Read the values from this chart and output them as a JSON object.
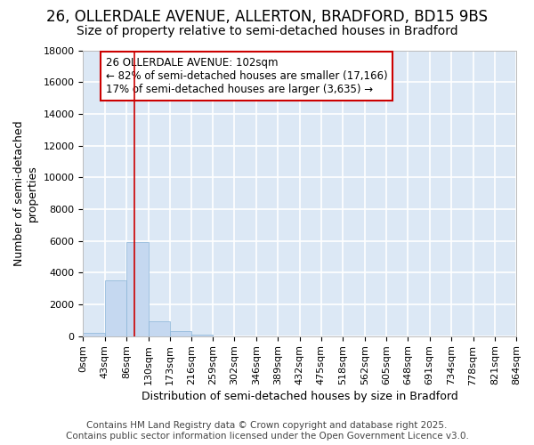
{
  "title": "26, OLLERDALE AVENUE, ALLERTON, BRADFORD, BD15 9BS",
  "subtitle": "Size of property relative to semi-detached houses in Bradford",
  "xlabel": "Distribution of semi-detached houses by size in Bradford",
  "ylabel": "Number of semi-detached\nproperties",
  "bar_color": "#c5d8f0",
  "bar_edge_color": "#8ab4d8",
  "bin_edges": [
    0,
    43,
    86,
    130,
    173,
    216,
    259,
    302,
    346,
    389,
    432,
    475,
    518,
    562,
    605,
    648,
    691,
    734,
    778,
    821,
    864
  ],
  "bar_heights": [
    200,
    3500,
    5900,
    950,
    300,
    100,
    0,
    0,
    0,
    0,
    0,
    0,
    0,
    0,
    0,
    0,
    0,
    0,
    0,
    0
  ],
  "ylim": [
    0,
    18000
  ],
  "xlim": [
    0,
    864
  ],
  "property_size": 102,
  "annotation_title": "26 OLLERDALE AVENUE: 102sqm",
  "annotation_line1": "← 82% of semi-detached houses are smaller (17,166)",
  "annotation_line2": "17% of semi-detached houses are larger (3,635) →",
  "footer_line1": "Contains HM Land Registry data © Crown copyright and database right 2025.",
  "footer_line2": "Contains public sector information licensed under the Open Government Licence v3.0.",
  "red_line_color": "#cc0000",
  "plot_bg_color": "#dce8f5",
  "fig_bg_color": "#ffffff",
  "grid_color": "#ffffff",
  "title_fontsize": 12,
  "subtitle_fontsize": 10,
  "axis_label_fontsize": 9,
  "tick_fontsize": 8,
  "annotation_fontsize": 8.5,
  "footer_fontsize": 7.5
}
